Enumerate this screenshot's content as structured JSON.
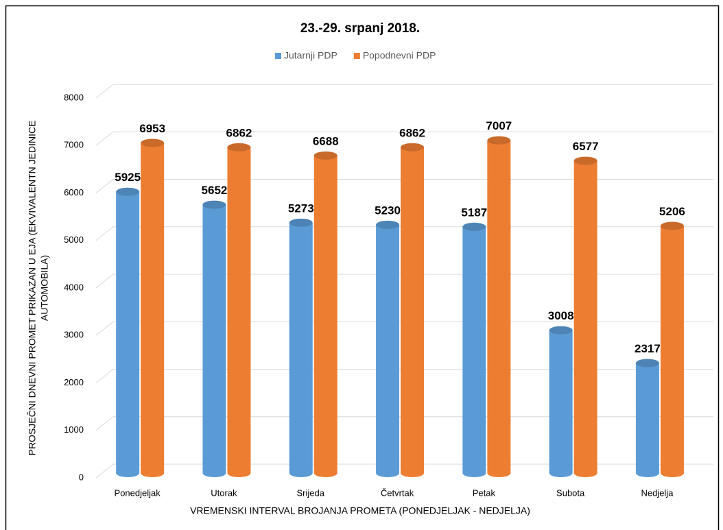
{
  "chart_data": {
    "type": "bar3d",
    "title": "23.-29. srpanj 2018.",
    "xlabel": "VREMENSKI INTERVAL BROJANJA PROMETA (PONEDJELJAK - NEDJELJA)",
    "ylabel": [
      "PROSJEČNI DNEVNI PROMET PRIKAZAN U EJA (EKVIVALENTN JEDINICE",
      "AUTOMOBILA)"
    ],
    "categories": [
      "Ponedjeljak",
      "Utorak",
      "Srijeda",
      "Četvrtak",
      "Petak",
      "Subota",
      "Nedjelja"
    ],
    "series": [
      {
        "name": "Jutarnji PDP",
        "color": "#5b9bd5",
        "values": [
          5925,
          5652,
          5273,
          5230,
          5187,
          3008,
          2317
        ]
      },
      {
        "name": "Popodnevni PDP",
        "color": "#ed7d31",
        "values": [
          6953,
          6862,
          6688,
          6862,
          7007,
          6577,
          5206
        ]
      }
    ],
    "ylim": [
      0,
      8000
    ],
    "yticks": [
      0,
      1000,
      2000,
      3000,
      4000,
      5000,
      6000,
      7000,
      8000
    ],
    "grid": true,
    "legend": "top"
  }
}
